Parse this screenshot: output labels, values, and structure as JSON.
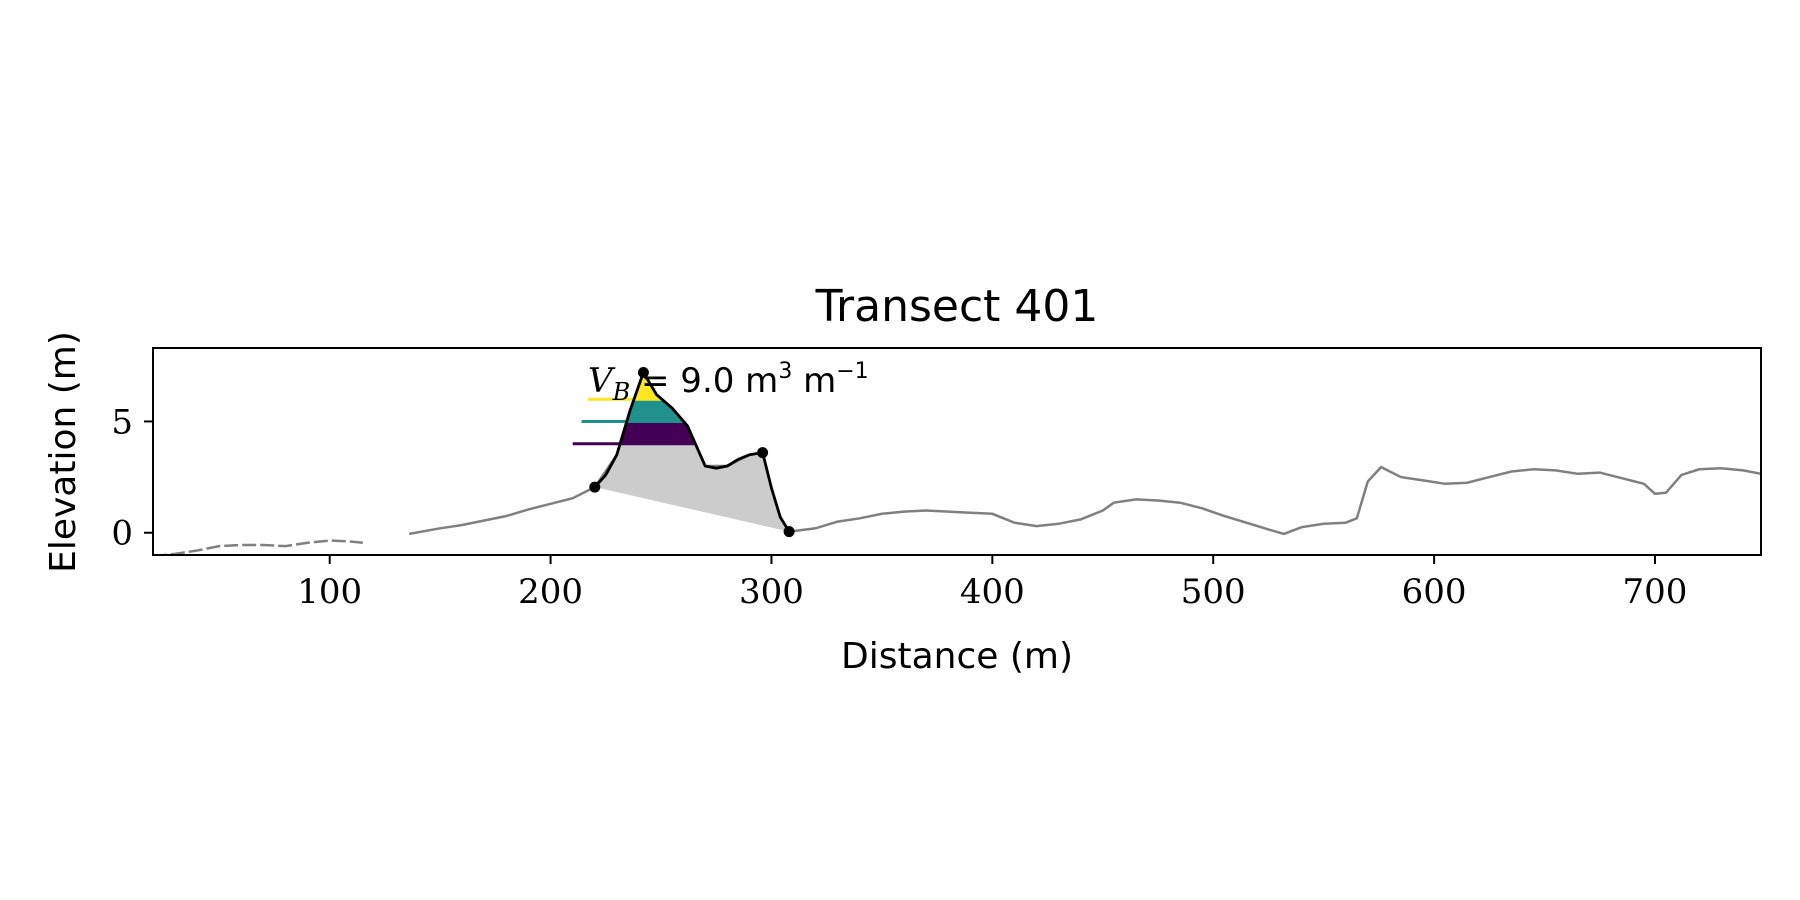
{
  "chart_data": {
    "type": "line",
    "title": "Transect 401",
    "xlabel": "Distance (m)",
    "ylabel": "Elevation (m)",
    "xlim": [
      20,
      748
    ],
    "ylim": [
      -1.0,
      8.3
    ],
    "xticks": [
      100,
      200,
      300,
      400,
      500,
      600,
      700
    ],
    "yticks": [
      0,
      5
    ],
    "grid": false,
    "annotation": {
      "prefix": "V",
      "subscript": "B",
      "text": " = 9.0 m",
      "exponent_1": "3",
      "unit_2": " m",
      "exponent_2": "−1"
    },
    "series": [
      {
        "role": "profile",
        "color": "#808080",
        "dashed_segment_x": [
          20,
          115
        ],
        "gap_x": [
          115,
          136
        ],
        "points": [
          [
            20,
            -1.05
          ],
          [
            30,
            -0.95
          ],
          [
            40,
            -0.8
          ],
          [
            50,
            -0.6
          ],
          [
            60,
            -0.55
          ],
          [
            70,
            -0.55
          ],
          [
            80,
            -0.6
          ],
          [
            90,
            -0.45
          ],
          [
            100,
            -0.35
          ],
          [
            110,
            -0.4
          ],
          [
            115,
            -0.45
          ],
          [
            136,
            -0.05
          ],
          [
            150,
            0.2
          ],
          [
            160,
            0.35
          ],
          [
            170,
            0.55
          ],
          [
            180,
            0.75
          ],
          [
            190,
            1.05
          ],
          [
            200,
            1.3
          ],
          [
            210,
            1.55
          ],
          [
            220,
            2.05
          ],
          [
            230,
            3.5
          ],
          [
            236,
            5.5
          ],
          [
            242,
            7.2
          ],
          [
            248,
            6.2
          ],
          [
            255,
            5.6
          ],
          [
            262,
            4.8
          ],
          [
            270,
            3.0
          ],
          [
            280,
            3.0
          ],
          [
            290,
            3.5
          ],
          [
            296,
            3.6
          ],
          [
            300,
            2.0
          ],
          [
            304,
            0.7
          ],
          [
            308,
            0.05
          ],
          [
            320,
            0.2
          ],
          [
            330,
            0.5
          ],
          [
            340,
            0.65
          ],
          [
            350,
            0.85
          ],
          [
            360,
            0.95
          ],
          [
            370,
            1.0
          ],
          [
            380,
            0.95
          ],
          [
            390,
            0.9
          ],
          [
            400,
            0.85
          ],
          [
            410,
            0.45
          ],
          [
            420,
            0.3
          ],
          [
            430,
            0.4
          ],
          [
            440,
            0.6
          ],
          [
            450,
            1.0
          ],
          [
            455,
            1.35
          ],
          [
            465,
            1.5
          ],
          [
            475,
            1.45
          ],
          [
            485,
            1.35
          ],
          [
            495,
            1.1
          ],
          [
            505,
            0.75
          ],
          [
            515,
            0.45
          ],
          [
            525,
            0.15
          ],
          [
            532,
            -0.05
          ],
          [
            540,
            0.25
          ],
          [
            550,
            0.4
          ],
          [
            560,
            0.45
          ],
          [
            565,
            0.65
          ],
          [
            570,
            2.3
          ],
          [
            576,
            2.95
          ],
          [
            585,
            2.5
          ],
          [
            595,
            2.35
          ],
          [
            605,
            2.2
          ],
          [
            615,
            2.25
          ],
          [
            625,
            2.5
          ],
          [
            635,
            2.75
          ],
          [
            645,
            2.85
          ],
          [
            655,
            2.8
          ],
          [
            665,
            2.65
          ],
          [
            675,
            2.7
          ],
          [
            685,
            2.45
          ],
          [
            695,
            2.2
          ],
          [
            700,
            1.75
          ],
          [
            705,
            1.8
          ],
          [
            712,
            2.6
          ],
          [
            720,
            2.85
          ],
          [
            730,
            2.9
          ],
          [
            740,
            2.8
          ],
          [
            748,
            2.65
          ]
        ]
      },
      {
        "role": "dune",
        "color": "#000000",
        "points": [
          [
            220,
            2.05
          ],
          [
            225,
            2.6
          ],
          [
            230,
            3.5
          ],
          [
            236,
            5.5
          ],
          [
            242,
            7.2
          ],
          [
            248,
            6.2
          ],
          [
            255,
            5.6
          ],
          [
            262,
            4.8
          ],
          [
            270,
            3.0
          ],
          [
            275,
            2.9
          ],
          [
            280,
            3.0
          ],
          [
            285,
            3.3
          ],
          [
            290,
            3.5
          ],
          [
            296,
            3.6
          ],
          [
            300,
            2.0
          ],
          [
            304,
            0.7
          ],
          [
            308,
            0.05
          ]
        ]
      }
    ],
    "key_points": [
      [
        220,
        2.05
      ],
      [
        242,
        7.2
      ],
      [
        296,
        3.6
      ],
      [
        308,
        0.05
      ]
    ],
    "fill": {
      "color": "#cccccc",
      "base_from": [
        220,
        2.05
      ],
      "base_to": [
        308,
        0.05
      ]
    },
    "levels": [
      {
        "z": 6.0,
        "color": "#fde725",
        "x_start": 217
      },
      {
        "z": 5.0,
        "color": "#21918c",
        "x_start": 214
      },
      {
        "z": 4.0,
        "color": "#440154",
        "x_start": 210
      }
    ]
  }
}
